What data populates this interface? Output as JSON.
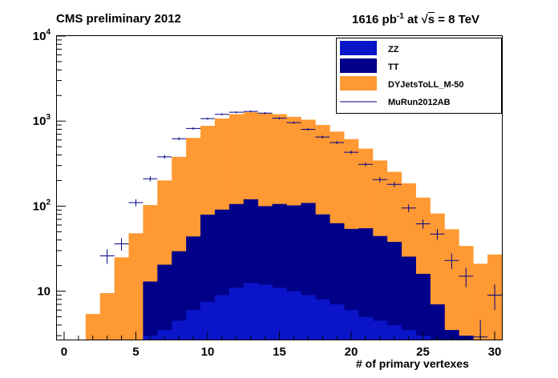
{
  "header": {
    "title": "CMS preliminary 2012",
    "lumi_value": "1616 pb",
    "lumi_exp": "-1",
    "lumi_mid": " at ",
    "sqrt_sym": "√",
    "sqrt_arg": "s",
    "energy": " = 8 TeV"
  },
  "chart_data": {
    "type": "bar",
    "subtype": "stacked-histogram-with-data-points",
    "xlabel": "# of primary vertexes",
    "ylabel": "",
    "xlim": [
      -0.5,
      30.5
    ],
    "ylim": [
      2.7,
      10000
    ],
    "yscale": "log",
    "grid": false,
    "legend_position": "top-right",
    "x_ticks": [
      "0",
      "5",
      "10",
      "15",
      "20",
      "25",
      "30"
    ],
    "y_ticks": [
      {
        "value": 10,
        "label": "10",
        "exp": ""
      },
      {
        "value": 100,
        "label": "10",
        "exp": "2"
      },
      {
        "value": 1000,
        "label": "10",
        "exp": "3"
      },
      {
        "value": 10000,
        "label": "10",
        "exp": "4"
      }
    ],
    "bin_edges": [
      1.5,
      2.5,
      3.5,
      4.5,
      5.5,
      6.5,
      7.5,
      8.5,
      9.5,
      10.5,
      11.5,
      12.5,
      13.5,
      14.5,
      15.5,
      16.5,
      17.5,
      18.5,
      19.5,
      20.5,
      21.5,
      22.5,
      23.5,
      24.5,
      25.5,
      26.5,
      27.5,
      28.5,
      29.5,
      30.5
    ],
    "series": [
      {
        "name": "ZZ",
        "color": "#0a14c8",
        "values": [
          0,
          0,
          0,
          0,
          3,
          3.5,
          4.5,
          6,
          7.5,
          9,
          11,
          12.5,
          12,
          11,
          10,
          9,
          8,
          7,
          6,
          5,
          4.5,
          4,
          3.5,
          3,
          0,
          0,
          0,
          0,
          0
        ]
      },
      {
        "name": "TT",
        "color": "#000088",
        "values": [
          0,
          0,
          0,
          0,
          10,
          17,
          25,
          38,
          72,
          82,
          95,
          108,
          88,
          95,
          92,
          100,
          72,
          56,
          48,
          50,
          40,
          34,
          22,
          13,
          7,
          3.5,
          3,
          0,
          0
        ]
      },
      {
        "name": "DYJetsToLL_M-50",
        "color": "#ff9933",
        "values": [
          5.4,
          9.5,
          25,
          48,
          90,
          180,
          350,
          590,
          800,
          980,
          1100,
          1150,
          1130,
          1100,
          1020,
          930,
          820,
          690,
          560,
          420,
          300,
          215,
          160,
          110,
          75,
          50,
          31,
          21,
          27
        ]
      }
    ],
    "data_series": {
      "name": "MuRun2012AB",
      "color": "#000088",
      "x": [
        3,
        4,
        5,
        6,
        7,
        8,
        9,
        10,
        11,
        12,
        13,
        14,
        15,
        16,
        17,
        18,
        19,
        20,
        21,
        22,
        23,
        24,
        25,
        26,
        27,
        28,
        29,
        30
      ],
      "y": [
        26,
        36,
        110,
        210,
        380,
        620,
        820,
        1070,
        1200,
        1270,
        1300,
        1240,
        1080,
        960,
        800,
        650,
        560,
        430,
        310,
        205,
        180,
        95,
        62,
        47,
        23,
        15,
        2.9,
        9
      ]
    }
  }
}
